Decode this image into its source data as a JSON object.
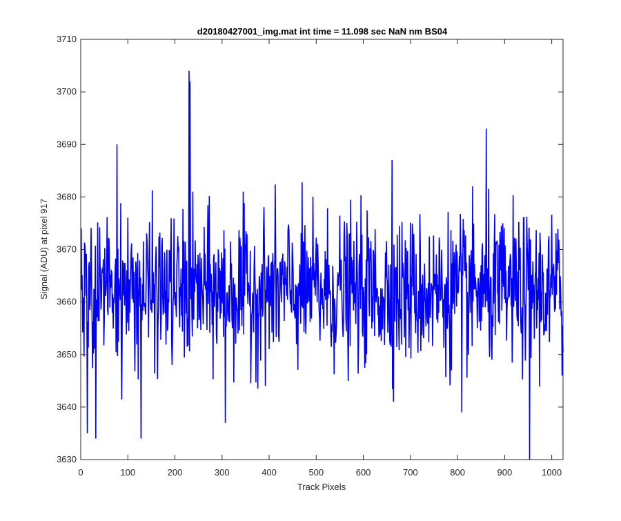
{
  "chart_data": {
    "type": "line",
    "title": "d20180427001_img.mat int time = 11.098 sec  NaN nm BS04",
    "xlabel": "Track Pixels",
    "ylabel": "Signal (ADU) at pixel 917",
    "xlim": [
      0,
      1024
    ],
    "ylim": [
      3630,
      3710
    ],
    "xticks": [
      "0",
      "100",
      "200",
      "300",
      "400",
      "500",
      "600",
      "700",
      "800",
      "900",
      "1000"
    ],
    "yticks": [
      "3630",
      "3640",
      "3650",
      "3660",
      "3670",
      "3680",
      "3690",
      "3700",
      "3710"
    ],
    "grid": false,
    "series": [
      {
        "color": "#0000ff",
        "x_start": 1,
        "x_step": 1,
        "n_points": 1024,
        "mean": 3662,
        "std": 7,
        "notable_points": [
          {
            "x": 14,
            "y": 3635
          },
          {
            "x": 32,
            "y": 3634
          },
          {
            "x": 77,
            "y": 3690
          },
          {
            "x": 128,
            "y": 3634
          },
          {
            "x": 230,
            "y": 3704
          },
          {
            "x": 232,
            "y": 3702
          },
          {
            "x": 307,
            "y": 3637
          },
          {
            "x": 661,
            "y": 3687
          },
          {
            "x": 809,
            "y": 3639
          },
          {
            "x": 861,
            "y": 3693
          },
          {
            "x": 953,
            "y": 3630
          },
          {
            "x": 1022,
            "y": 3646
          }
        ]
      }
    ]
  }
}
